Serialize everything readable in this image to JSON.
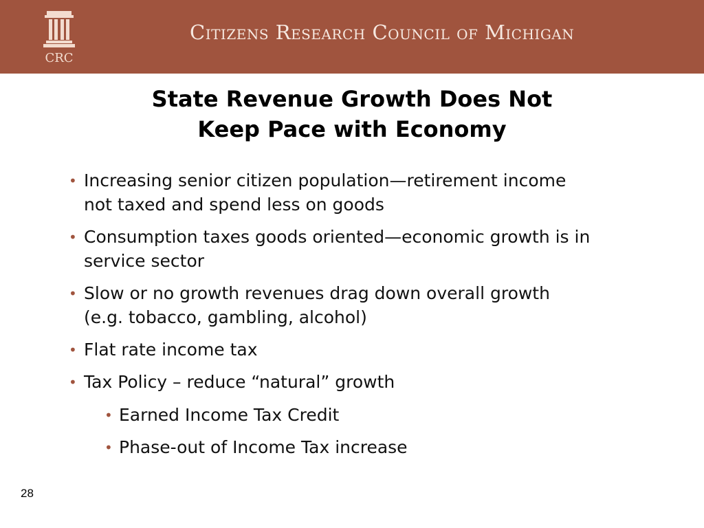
{
  "header": {
    "logo_text": "CRC",
    "org_name": "Citizens Research Council of Michigan"
  },
  "title": {
    "line1": "State Revenue Growth Does Not",
    "line2": "Keep Pace with Economy"
  },
  "bullets": [
    {
      "lines": [
        "Increasing senior citizen population—retirement income",
        "not taxed and spend less on goods"
      ]
    },
    {
      "lines": [
        "Consumption taxes goods oriented—economic growth is in",
        "service sector"
      ]
    },
    {
      "lines": [
        "Slow or no growth revenues drag down overall growth",
        "(e.g. tobacco, gambling, alcohol)"
      ]
    },
    {
      "lines": [
        "Flat rate income tax"
      ]
    },
    {
      "lines": [
        "Tax Policy – reduce “natural” growth"
      ],
      "sub": [
        "Earned Income Tax Credit",
        "Phase-out of Income Tax increase"
      ]
    }
  ],
  "bullet_symbol": "•",
  "page_number": "28",
  "colors": {
    "banner": "#a0543e",
    "bullet": "#a0543e"
  }
}
